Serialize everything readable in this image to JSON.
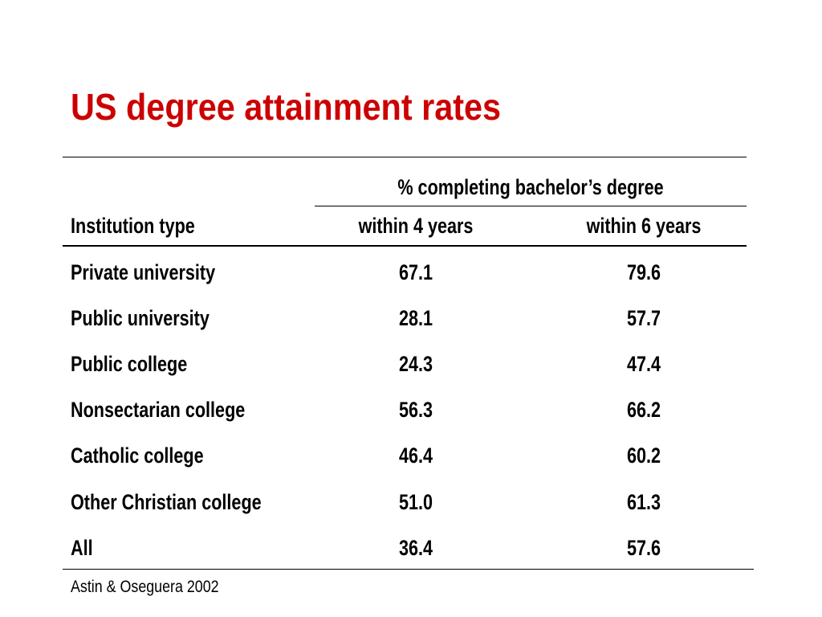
{
  "slide": {
    "title": "US degree attainment rates",
    "title_color": "#cc0000"
  },
  "table": {
    "group_header": "% completing bachelor’s degree",
    "headers": {
      "institution_type": "Institution type",
      "within_4_years": "within 4 years",
      "within_6 years": "within 6 years",
      "within_6_years": "within 6 years"
    },
    "rows": [
      {
        "institution": "Private university",
        "within_4_years": "67.1",
        "within_6_years": "79.6"
      },
      {
        "institution": "Public university",
        "within_4_years": "28.1",
        "within_6_years": "57.7"
      },
      {
        "institution": "Public college",
        "within_4_years": "24.3",
        "within_6_years": "47.4"
      },
      {
        "institution": "Nonsectarian college",
        "within_4_years": "56.3",
        "within_6_years": "66.2"
      },
      {
        "institution": "Catholic college",
        "within_4_years": "46.4",
        "within_6_years": "60.2"
      },
      {
        "institution": "Other Christian college",
        "within_4_years": "51.0",
        "within_6_years": "61.3"
      },
      {
        "institution": "All",
        "within_4_years": "36.4",
        "within_6_years": "57.6"
      }
    ]
  },
  "footer": {
    "source": "Astin & Oseguera 2002"
  }
}
